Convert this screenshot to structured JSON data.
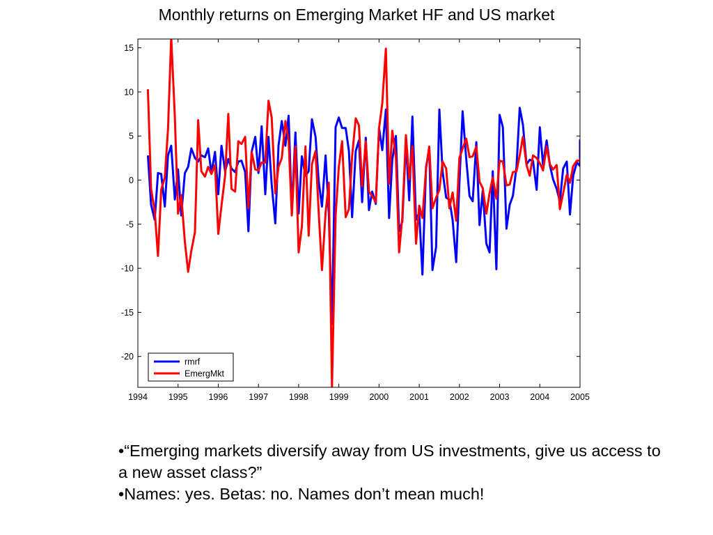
{
  "slide": {
    "title": "Monthly returns on Emerging Market HF and US market",
    "bullets": [
      "•“Emerging markets diversify away from US investments, give us access to a new asset class?”",
      "•Names: yes. Betas: no. Names don’t mean much!"
    ]
  },
  "chart_data": {
    "type": "line",
    "title": "Monthly returns on Emerging Market HF and US market",
    "xlabel": "",
    "ylabel": "",
    "xlim": [
      1994,
      2005
    ],
    "ylim": [
      -23.5,
      16
    ],
    "x_ticks": [
      "1994",
      "1995",
      "1996",
      "1997",
      "1998",
      "1999",
      "2000",
      "2001",
      "2002",
      "2003",
      "2004",
      "2005"
    ],
    "y_ticks": [
      "15",
      "10",
      "5",
      "0",
      "-5",
      "-10",
      "-15",
      "-20"
    ],
    "grid": false,
    "legend_position": "bottom-left",
    "series": [
      {
        "name": "rmrf",
        "color": "#0000ff",
        "points": [
          [
            1994.25,
            2.8
          ],
          [
            1994.33,
            -2.8
          ],
          [
            1994.42,
            -4.5
          ],
          [
            1994.5,
            0.8
          ],
          [
            1994.58,
            0.7
          ],
          [
            1994.67,
            -3.0
          ],
          [
            1994.75,
            2.8
          ],
          [
            1994.83,
            3.9
          ],
          [
            1994.92,
            -2.2
          ],
          [
            1995.0,
            1.2
          ],
          [
            1995.08,
            -4.0
          ],
          [
            1995.17,
            0.8
          ],
          [
            1995.25,
            1.5
          ],
          [
            1995.33,
            3.6
          ],
          [
            1995.42,
            2.5
          ],
          [
            1995.5,
            2.1
          ],
          [
            1995.58,
            2.8
          ],
          [
            1995.67,
            2.6
          ],
          [
            1995.75,
            3.6
          ],
          [
            1995.83,
            0.8
          ],
          [
            1995.92,
            3.2
          ],
          [
            1996.0,
            -1.6
          ],
          [
            1996.08,
            3.9
          ],
          [
            1996.17,
            1.0
          ],
          [
            1996.25,
            2.4
          ],
          [
            1996.33,
            1.3
          ],
          [
            1996.42,
            0.9
          ],
          [
            1996.5,
            2.1
          ],
          [
            1996.58,
            2.2
          ],
          [
            1996.67,
            0.9
          ],
          [
            1996.75,
            -5.8
          ],
          [
            1996.83,
            3.2
          ],
          [
            1996.92,
            4.9
          ],
          [
            1997.0,
            0.8
          ],
          [
            1997.08,
            6.1
          ],
          [
            1997.17,
            -1.6
          ],
          [
            1997.25,
            4.9
          ],
          [
            1997.33,
            -0.5
          ],
          [
            1997.42,
            -4.9
          ],
          [
            1997.5,
            3.9
          ],
          [
            1997.58,
            6.7
          ],
          [
            1997.67,
            3.9
          ],
          [
            1997.75,
            7.3
          ],
          [
            1997.83,
            -3.5
          ],
          [
            1997.92,
            5.4
          ],
          [
            1998.0,
            -3.8
          ],
          [
            1998.08,
            2.7
          ],
          [
            1998.17,
            0.5
          ],
          [
            1998.25,
            1.0
          ],
          [
            1998.33,
            6.9
          ],
          [
            1998.42,
            4.9
          ],
          [
            1998.5,
            -0.2
          ],
          [
            1998.58,
            -3.0
          ],
          [
            1998.67,
            2.8
          ],
          [
            1998.75,
            -3.7
          ],
          [
            1998.83,
            -16.3
          ],
          [
            1998.92,
            6.0
          ],
          [
            1999.0,
            7.1
          ],
          [
            1999.08,
            5.9
          ],
          [
            1999.17,
            5.9
          ],
          [
            1999.25,
            3.3
          ],
          [
            1999.33,
            -4.2
          ],
          [
            1999.42,
            3.3
          ],
          [
            1999.5,
            4.5
          ],
          [
            1999.58,
            -2.5
          ],
          [
            1999.67,
            4.8
          ],
          [
            1999.75,
            -3.4
          ],
          [
            1999.83,
            -1.3
          ],
          [
            1999.92,
            -2.7
          ],
          [
            2000.0,
            5.9
          ],
          [
            2000.08,
            3.4
          ],
          [
            2000.17,
            8.0
          ],
          [
            2000.25,
            -4.3
          ],
          [
            2000.33,
            2.3
          ],
          [
            2000.42,
            5.0
          ],
          [
            2000.5,
            -5.8
          ],
          [
            2000.58,
            -4.7
          ],
          [
            2000.67,
            4.3
          ],
          [
            2000.75,
            -2.3
          ],
          [
            2000.83,
            7.2
          ],
          [
            2000.92,
            -4.5
          ],
          [
            2001.0,
            -3.7
          ],
          [
            2001.08,
            -10.7
          ],
          [
            2001.17,
            1.5
          ],
          [
            2001.25,
            3.5
          ],
          [
            2001.33,
            -10.2
          ],
          [
            2001.42,
            -7.6
          ],
          [
            2001.5,
            8.0
          ],
          [
            2001.58,
            1.0
          ],
          [
            2001.67,
            -2.0
          ],
          [
            2001.75,
            -2.2
          ],
          [
            2001.83,
            -4.5
          ],
          [
            2001.92,
            -9.3
          ],
          [
            2002.0,
            -0.3
          ],
          [
            2002.08,
            7.8
          ],
          [
            2002.17,
            2.4
          ],
          [
            2002.25,
            -1.8
          ],
          [
            2002.33,
            -2.4
          ],
          [
            2002.42,
            4.3
          ],
          [
            2002.5,
            -5.1
          ],
          [
            2002.58,
            -1.2
          ],
          [
            2002.67,
            -7.2
          ],
          [
            2002.75,
            -8.2
          ],
          [
            2002.83,
            1.0
          ],
          [
            2002.92,
            -10.1
          ],
          [
            2003.0,
            7.4
          ],
          [
            2003.08,
            6.0
          ],
          [
            2003.17,
            -5.5
          ],
          [
            2003.25,
            -2.8
          ],
          [
            2003.33,
            -1.8
          ],
          [
            2003.42,
            1.5
          ],
          [
            2003.5,
            8.2
          ],
          [
            2003.58,
            6.3
          ],
          [
            2003.67,
            1.8
          ],
          [
            2003.75,
            2.3
          ],
          [
            2003.83,
            2.2
          ],
          [
            2003.92,
            -1.1
          ],
          [
            2004.0,
            6.0
          ],
          [
            2004.08,
            1.7
          ],
          [
            2004.17,
            4.5
          ],
          [
            2004.25,
            1.7
          ],
          [
            2004.33,
            0.1
          ],
          [
            2004.42,
            -1.0
          ],
          [
            2004.5,
            -2.4
          ],
          [
            2004.58,
            1.3
          ],
          [
            2004.67,
            2.1
          ],
          [
            2004.75,
            -3.9
          ],
          [
            2004.83,
            0.5
          ],
          [
            2004.92,
            2.0
          ],
          [
            2005.0,
            1.6
          ],
          [
            2005.0,
            4.6
          ]
        ]
      },
      {
        "name": "EmergMkt",
        "color": "#ff0000",
        "points": [
          [
            1994.25,
            10.3
          ],
          [
            1994.33,
            -1.0
          ],
          [
            1994.42,
            -3.5
          ],
          [
            1994.5,
            -8.6
          ],
          [
            1994.58,
            -1.1
          ],
          [
            1994.67,
            0.3
          ],
          [
            1994.75,
            5.8
          ],
          [
            1994.83,
            16.2
          ],
          [
            1994.92,
            7.2
          ],
          [
            1995.0,
            -3.8
          ],
          [
            1995.08,
            -1.7
          ],
          [
            1995.17,
            -7.0
          ],
          [
            1995.25,
            -10.4
          ],
          [
            1995.33,
            -8.0
          ],
          [
            1995.42,
            -5.9
          ],
          [
            1995.5,
            6.8
          ],
          [
            1995.58,
            1.0
          ],
          [
            1995.67,
            0.4
          ],
          [
            1995.75,
            1.5
          ],
          [
            1995.83,
            0.7
          ],
          [
            1995.92,
            1.7
          ],
          [
            1996.0,
            -6.1
          ],
          [
            1996.08,
            -2.9
          ],
          [
            1996.17,
            0.5
          ],
          [
            1996.25,
            7.5
          ],
          [
            1996.33,
            -1.0
          ],
          [
            1996.42,
            -1.3
          ],
          [
            1996.5,
            4.4
          ],
          [
            1996.58,
            4.1
          ],
          [
            1996.67,
            4.9
          ],
          [
            1996.75,
            -3.2
          ],
          [
            1996.83,
            3.2
          ],
          [
            1996.92,
            1.2
          ],
          [
            1997.0,
            1.1
          ],
          [
            1997.08,
            2.0
          ],
          [
            1997.17,
            2.0
          ],
          [
            1997.25,
            9.0
          ],
          [
            1997.33,
            7.1
          ],
          [
            1997.42,
            -1.5
          ],
          [
            1997.5,
            1.5
          ],
          [
            1997.58,
            2.5
          ],
          [
            1997.67,
            6.7
          ],
          [
            1997.75,
            4.5
          ],
          [
            1997.83,
            -4.0
          ],
          [
            1997.92,
            3.8
          ],
          [
            1998.0,
            -8.2
          ],
          [
            1998.08,
            -5.3
          ],
          [
            1998.17,
            3.8
          ],
          [
            1998.25,
            -6.3
          ],
          [
            1998.33,
            1.8
          ],
          [
            1998.42,
            3.3
          ],
          [
            1998.5,
            -3.8
          ],
          [
            1998.58,
            -10.2
          ],
          [
            1998.67,
            -3.7
          ],
          [
            1998.75,
            -0.3
          ],
          [
            1998.83,
            -23.5
          ],
          [
            1998.92,
            -4.0
          ],
          [
            1999.0,
            1.5
          ],
          [
            1999.08,
            4.4
          ],
          [
            1999.17,
            -4.2
          ],
          [
            1999.25,
            -3.3
          ],
          [
            1999.33,
            2.7
          ],
          [
            1999.42,
            7.0
          ],
          [
            1999.5,
            6.2
          ],
          [
            1999.58,
            -0.7
          ],
          [
            1999.67,
            4.4
          ],
          [
            1999.75,
            -1.3
          ],
          [
            1999.83,
            -1.8
          ],
          [
            1999.92,
            -2.5
          ],
          [
            2000.0,
            5.9
          ],
          [
            2000.08,
            8.7
          ],
          [
            2000.17,
            14.9
          ],
          [
            2000.25,
            -0.4
          ],
          [
            2000.33,
            5.6
          ],
          [
            2000.42,
            2.6
          ],
          [
            2000.5,
            -8.2
          ],
          [
            2000.58,
            -4.2
          ],
          [
            2000.67,
            5.1
          ],
          [
            2000.75,
            0.1
          ],
          [
            2000.83,
            3.8
          ],
          [
            2000.92,
            -7.2
          ],
          [
            2001.0,
            -2.9
          ],
          [
            2001.08,
            -4.3
          ],
          [
            2001.17,
            1.3
          ],
          [
            2001.25,
            3.8
          ],
          [
            2001.33,
            -3.2
          ],
          [
            2001.42,
            -2.0
          ],
          [
            2001.5,
            -1.1
          ],
          [
            2001.58,
            2.1
          ],
          [
            2001.67,
            1.3
          ],
          [
            2001.75,
            -3.2
          ],
          [
            2001.83,
            -1.4
          ],
          [
            2001.92,
            -4.6
          ],
          [
            2002.0,
            2.5
          ],
          [
            2002.08,
            3.6
          ],
          [
            2002.17,
            4.7
          ],
          [
            2002.25,
            2.6
          ],
          [
            2002.33,
            2.7
          ],
          [
            2002.42,
            3.8
          ],
          [
            2002.5,
            -0.2
          ],
          [
            2002.58,
            -0.9
          ],
          [
            2002.67,
            -3.8
          ],
          [
            2002.75,
            -1.5
          ],
          [
            2002.83,
            0.3
          ],
          [
            2002.92,
            -2.1
          ],
          [
            2003.0,
            2.2
          ],
          [
            2003.08,
            2.1
          ],
          [
            2003.17,
            -0.6
          ],
          [
            2003.25,
            -0.5
          ],
          [
            2003.33,
            0.9
          ],
          [
            2003.42,
            1.0
          ],
          [
            2003.5,
            2.8
          ],
          [
            2003.58,
            4.9
          ],
          [
            2003.67,
            1.7
          ],
          [
            2003.75,
            0.5
          ],
          [
            2003.83,
            2.8
          ],
          [
            2003.92,
            2.5
          ],
          [
            2004.0,
            1.9
          ],
          [
            2004.08,
            1.1
          ],
          [
            2004.17,
            3.8
          ],
          [
            2004.25,
            1.8
          ],
          [
            2004.33,
            1.2
          ],
          [
            2004.42,
            1.7
          ],
          [
            2004.5,
            -3.3
          ],
          [
            2004.58,
            -1.5
          ],
          [
            2004.67,
            0.6
          ],
          [
            2004.75,
            -0.3
          ],
          [
            2004.83,
            1.6
          ],
          [
            2004.92,
            2.2
          ],
          [
            2005.0,
            2.2
          ],
          [
            2005.0,
            2.5
          ]
        ]
      }
    ]
  }
}
